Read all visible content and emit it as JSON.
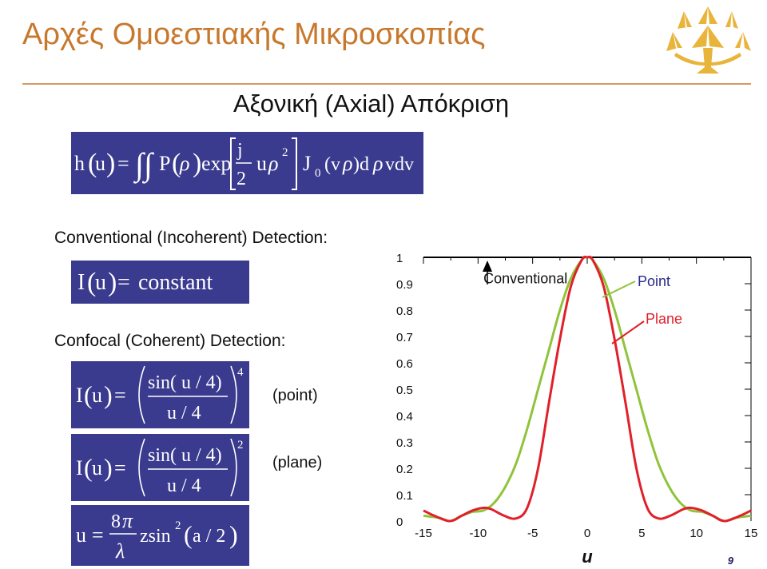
{
  "slide": {
    "title": "Αρχές Ομοεστιακής Μικροσκοπίας",
    "subtitle": "Αξονική (Axial) Απόκριση",
    "page_number": "9"
  },
  "labels": {
    "conventional_detection": "Conventional (Incoherent) Detection:",
    "confocal_detection": "Confocal (Coherent) Detection:",
    "point": "(point)",
    "plane": "(plane)"
  },
  "equations": {
    "main": "h(u) = ∬ P(ρ) exp[ (j/2) uρ² ] J₀(vρ) dρ vdv",
    "constant": "I(u) = constant",
    "point": "I(u) = ( sin(u/4) / (u/4) )⁴",
    "plane": "I(u) = ( sin(u/4) / (u/4) )²",
    "u_def": "u = (8π/λ) z sin²(a/2)"
  },
  "colors": {
    "title": "#c8782c",
    "equation_bg": "#3a3a8e",
    "point_curve": "#8fc43a",
    "plane_curve": "#e0202a",
    "annotation_point": "#2a2a8a",
    "annotation_plane": "#e0202a"
  },
  "chart_data": {
    "type": "line",
    "xlabel": "u",
    "ylabel": "",
    "xlim": [
      -15,
      15
    ],
    "ylim": [
      0,
      1
    ],
    "x_ticks": [
      -15,
      -10,
      -5,
      0,
      5,
      10,
      15
    ],
    "y_ticks": [
      0,
      0.1,
      0.2,
      0.3,
      0.4,
      0.5,
      0.6,
      0.7,
      0.8,
      0.9,
      1
    ],
    "series": [
      {
        "name": "Point",
        "x": [
          -15,
          -13.5,
          -12.57,
          -11.5,
          -10.5,
          -9.5,
          -8.5,
          -7.5,
          -6.5,
          -5.5,
          -4.5,
          -3.5,
          -2.5,
          -1.5,
          -0.5,
          0,
          0.5,
          1.5,
          2.5,
          3.5,
          4.5,
          5.5,
          6.5,
          7.5,
          8.5,
          9.5,
          10.5,
          11.5,
          12.57,
          13.5,
          15
        ],
        "y": [
          0.02,
          0.012,
          0.0,
          0.02,
          0.035,
          0.04,
          0.07,
          0.13,
          0.22,
          0.35,
          0.5,
          0.65,
          0.8,
          0.92,
          0.99,
          1.0,
          0.99,
          0.92,
          0.8,
          0.65,
          0.5,
          0.35,
          0.22,
          0.13,
          0.07,
          0.04,
          0.035,
          0.02,
          0.0,
          0.012,
          0.02
        ]
      },
      {
        "name": "Plane",
        "x": [
          -15,
          -14,
          -12.57,
          -11.5,
          -10.5,
          -9.5,
          -8.8,
          -7.6,
          -6.5,
          -5.5,
          -4.5,
          -3.5,
          -2.5,
          -1.5,
          -0.5,
          0,
          0.5,
          1.5,
          2.5,
          3.5,
          4.5,
          5.5,
          6.5,
          7.6,
          8.8,
          9.5,
          10.5,
          11.5,
          12.57,
          14,
          15
        ],
        "y": [
          0.04,
          0.02,
          0.0,
          0.02,
          0.04,
          0.05,
          0.045,
          0.02,
          0.01,
          0.05,
          0.2,
          0.45,
          0.69,
          0.89,
          0.99,
          1.0,
          0.99,
          0.89,
          0.69,
          0.45,
          0.2,
          0.05,
          0.01,
          0.02,
          0.045,
          0.05,
          0.04,
          0.02,
          0.0,
          0.02,
          0.04
        ]
      }
    ],
    "annotations": [
      {
        "text": "Conventional",
        "x": -9.5,
        "y": 0.92
      },
      {
        "text": "Point",
        "x": 6.5,
        "y": 0.93
      },
      {
        "text": "Plane",
        "x": 8.5,
        "y": 0.79
      }
    ],
    "grid": false
  }
}
